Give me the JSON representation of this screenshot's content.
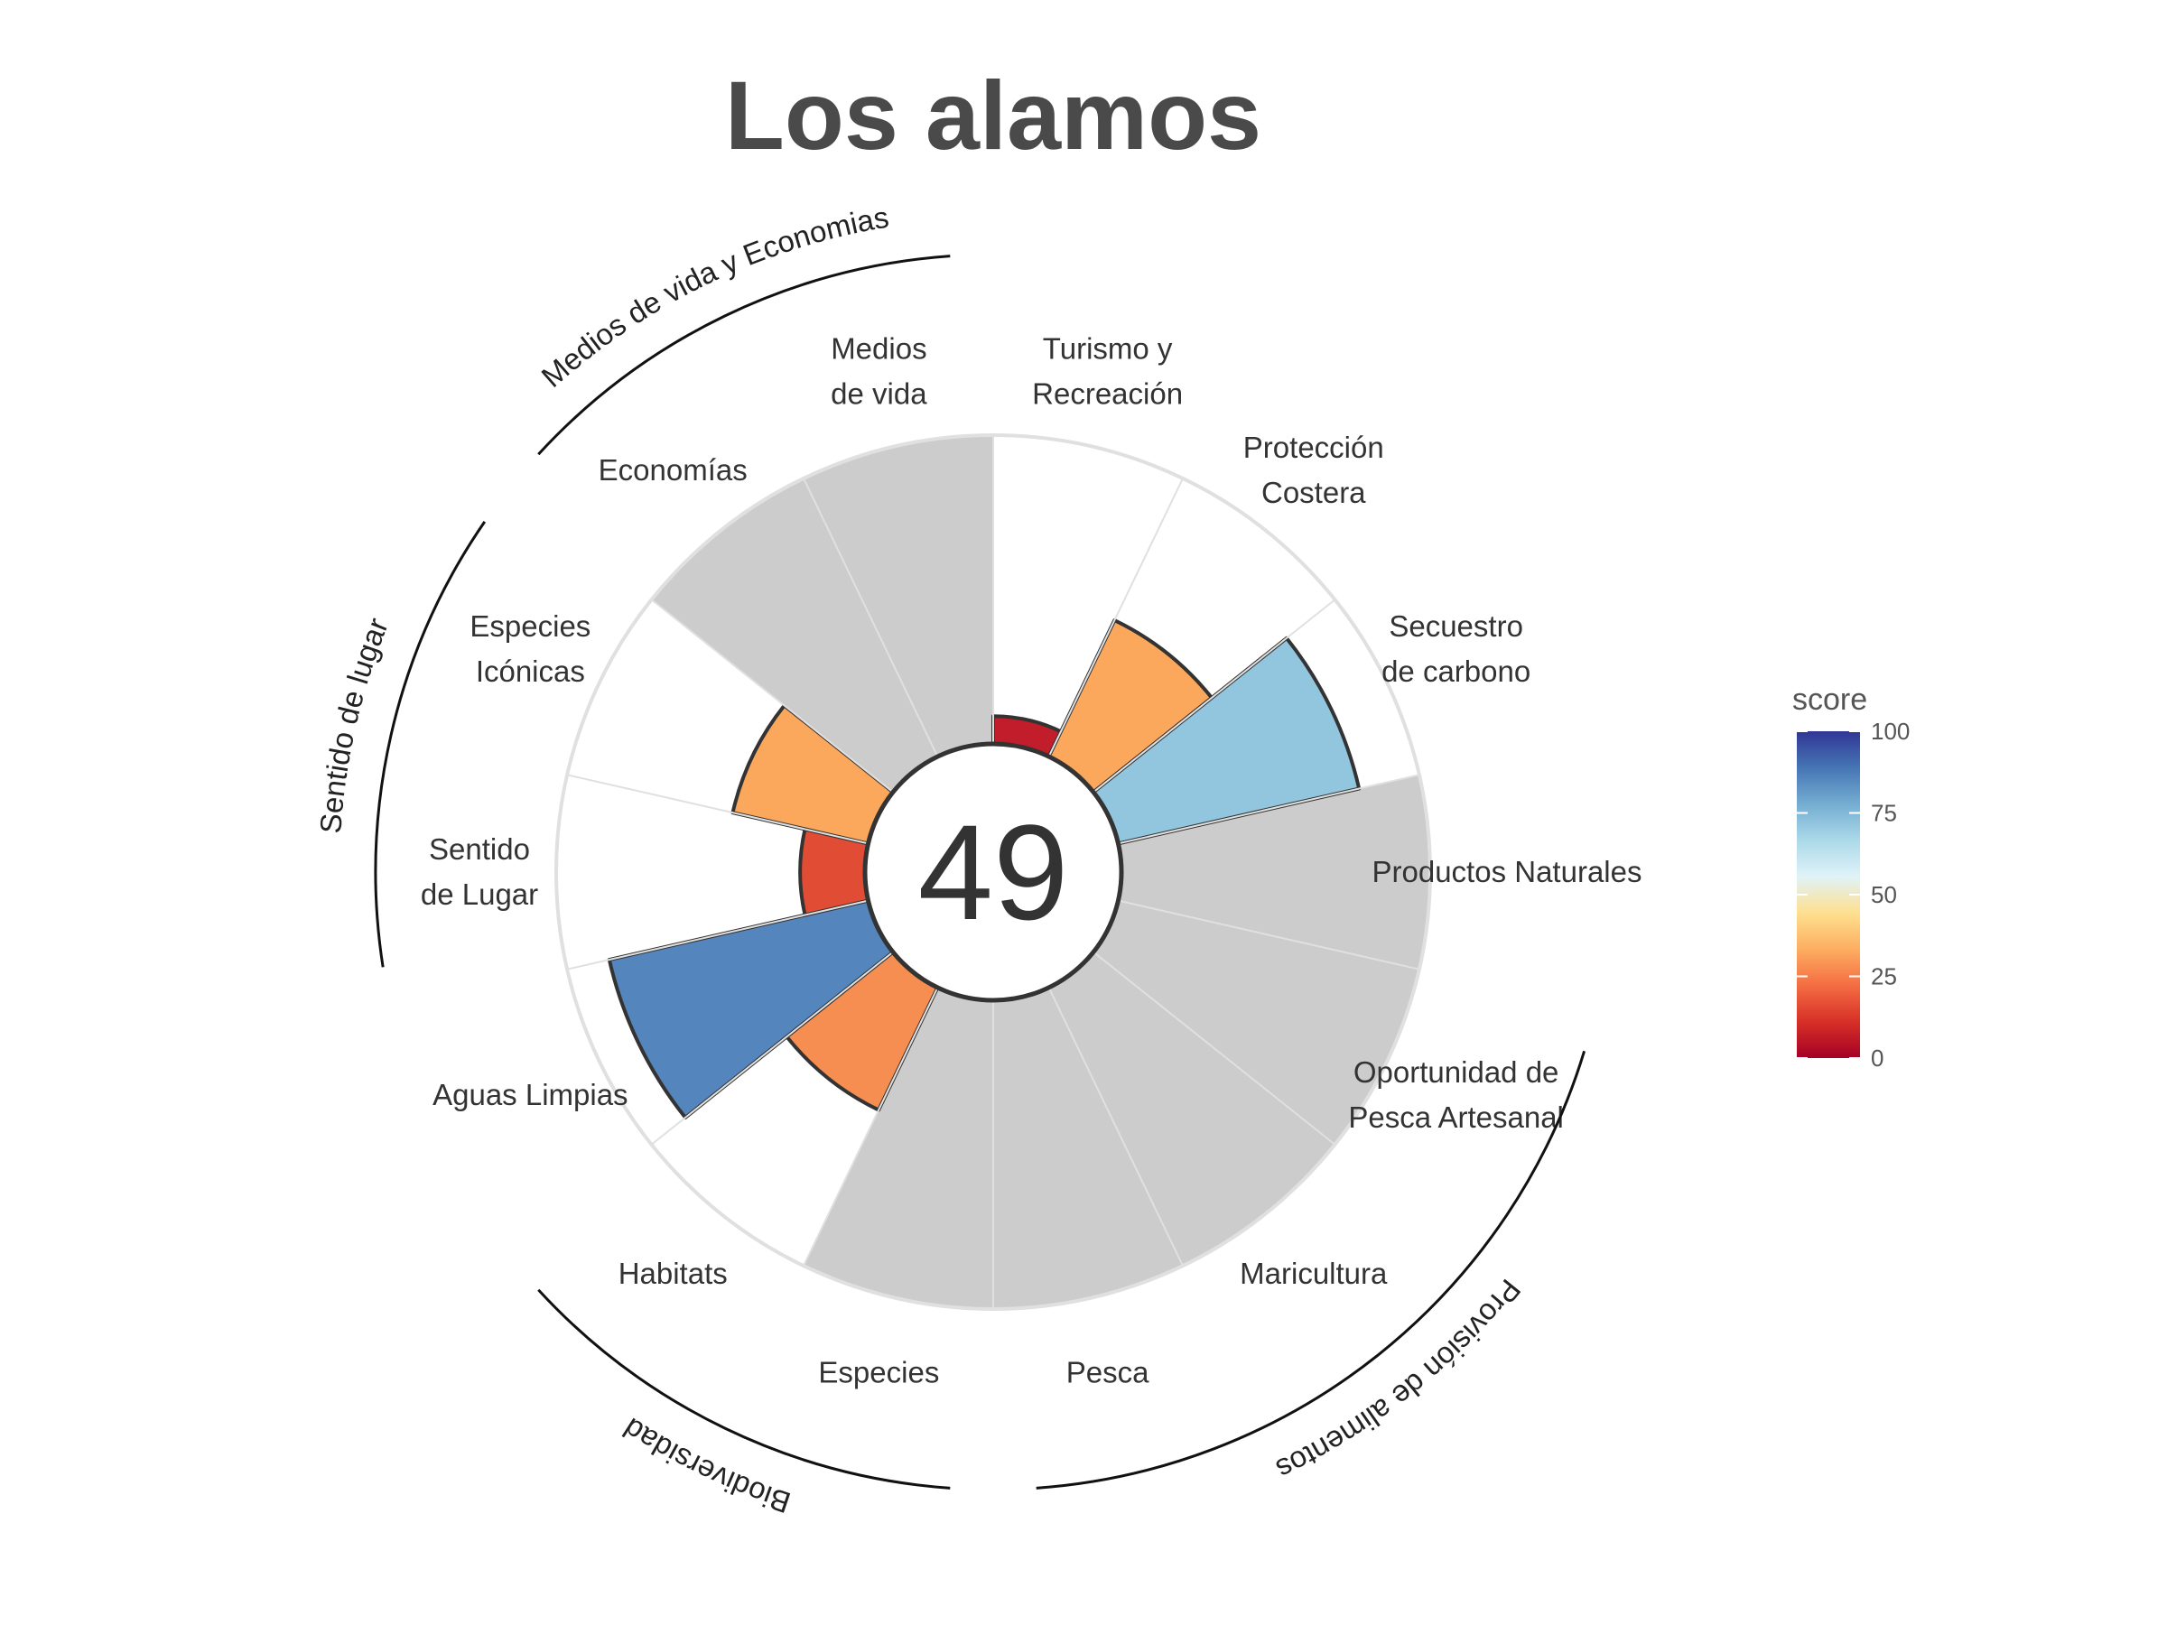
{
  "title": "Los alamos",
  "center_score": "49",
  "chart_data": {
    "type": "polar-bar",
    "max_value": 100,
    "petals": [
      {
        "name": "Productos Naturales",
        "label_lines": [
          "Productos Naturales"
        ],
        "value": null,
        "color": ""
      },
      {
        "name": "Oportunidad de Pesca Artesanal",
        "label_lines": [
          "Oportunidad de",
          "Pesca Artesanal"
        ],
        "value": null,
        "color": ""
      },
      {
        "name": "Maricultura",
        "label_lines": [
          "Maricultura"
        ],
        "value": null,
        "color": ""
      },
      {
        "name": "Pesca",
        "label_lines": [
          "Pesca"
        ],
        "value": null,
        "color": ""
      },
      {
        "name": "Especies",
        "label_lines": [
          "Especies"
        ],
        "value": null,
        "color": ""
      },
      {
        "name": "Habitats",
        "label_lines": [
          "Habitats"
        ],
        "value": 44,
        "color": "#f68e52"
      },
      {
        "name": "Aguas Limpias",
        "label_lines": [
          "Aguas Limpias"
        ],
        "value": 86,
        "color": "#5485bd"
      },
      {
        "name": "Sentido de Lugar",
        "label_lines": [
          "Sentido",
          "de Lugar"
        ],
        "value": 21,
        "color": "#e04c34"
      },
      {
        "name": "Especies Icónicas",
        "label_lines": [
          "Especies",
          "Icónicas"
        ],
        "value": 45,
        "color": "#fba75c"
      },
      {
        "name": "Economías",
        "label_lines": [
          "Economías"
        ],
        "value": null,
        "color": ""
      },
      {
        "name": "Medios de vida",
        "label_lines": [
          "Medios",
          "de vida"
        ],
        "value": null,
        "color": ""
      },
      {
        "name": "Turismo y Recreación",
        "label_lines": [
          "Turismo y",
          "Recreación"
        ],
        "value": 9,
        "color": "#c11d2b"
      },
      {
        "name": "Protección Costera",
        "label_lines": [
          "Protección",
          "Costera"
        ],
        "value": 49,
        "color": "#fba75c"
      },
      {
        "name": "Secuestro de carbono",
        "label_lines": [
          "Secuestro",
          "de carbono"
        ],
        "value": 80,
        "color": "#92c5de"
      }
    ],
    "groups": [
      {
        "name": "Provisión de alimentos",
        "petals": [
          "Oportunidad de Pesca Artesanal",
          "Maricultura",
          "Pesca"
        ]
      },
      {
        "name": "Biodiversidad",
        "petals": [
          "Especies",
          "Habitats"
        ]
      },
      {
        "name": "Sentido de lugar",
        "petals": [
          "Sentido de Lugar",
          "Especies Icónicas"
        ]
      },
      {
        "name": "Medios de vida y Economias",
        "petals": [
          "Economías",
          "Medios de vida"
        ]
      }
    ],
    "legend": {
      "title": "score",
      "position": "right",
      "ticks": [
        "0",
        "25",
        "50",
        "75",
        "100"
      ],
      "tick_values": [
        0,
        25,
        50,
        75,
        100
      ],
      "colors": [
        "#a50026",
        "#d73027",
        "#f46d43",
        "#fdae61",
        "#fee090",
        "#e0f3f8",
        "#abd9e9",
        "#74add1",
        "#4575b4",
        "#313695"
      ]
    },
    "na_color": "#cccccc",
    "grid_color": "#e0e0e0"
  }
}
